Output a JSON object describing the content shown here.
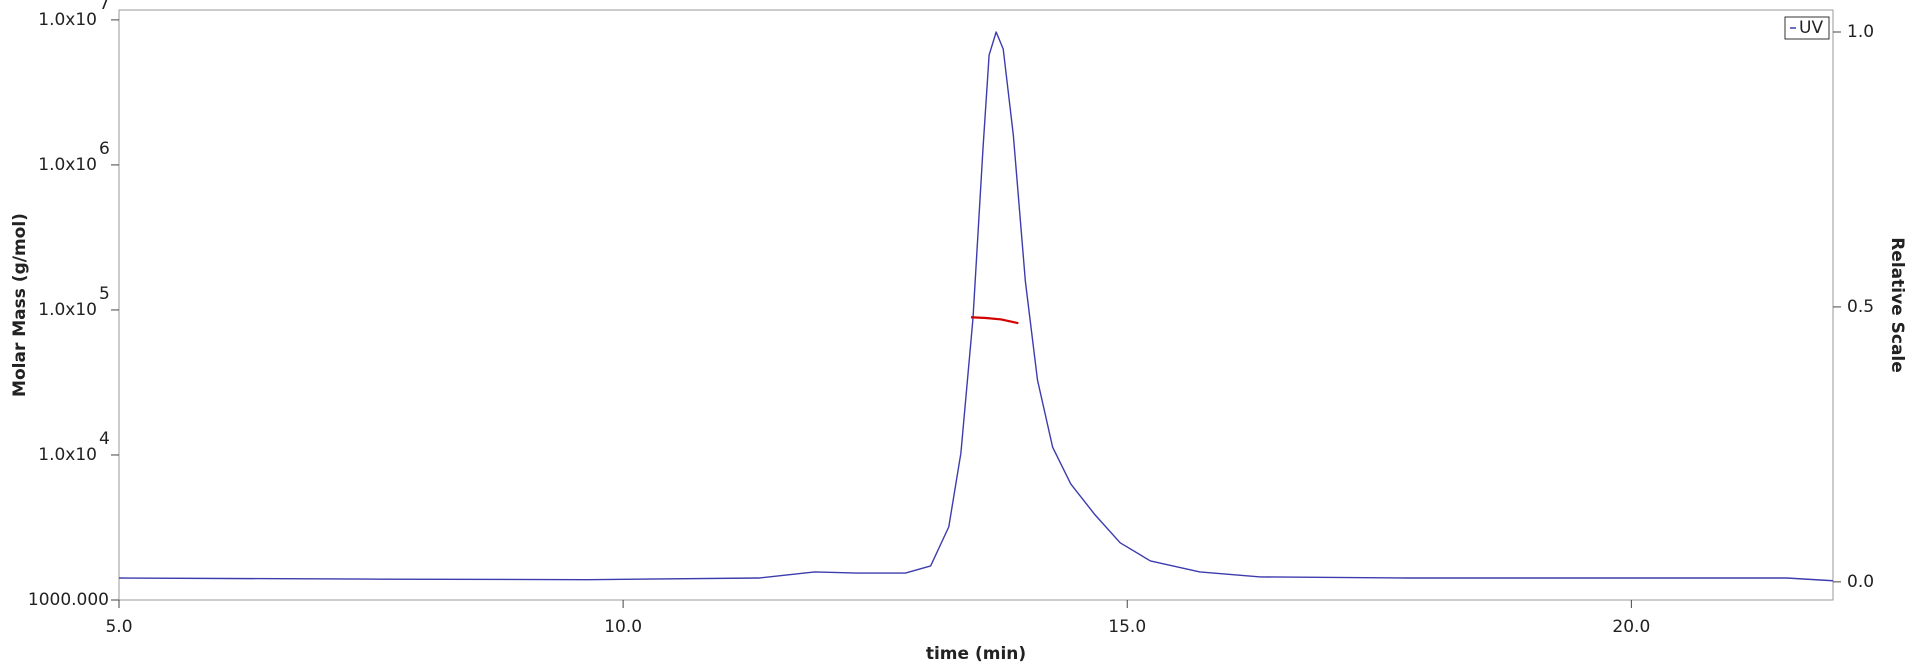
{
  "chart_data": {
    "type": "line",
    "xlabel": "time (min)",
    "ylabel": "Molar Mass (g/mol)",
    "y2label": "Relative Scale",
    "xlim": [
      5,
      22
    ],
    "xticks": [
      {
        "value": 5,
        "label": "5.0"
      },
      {
        "value": 10,
        "label": "10.0"
      },
      {
        "value": 15,
        "label": "15.0"
      },
      {
        "value": 20,
        "label": "20.0"
      }
    ],
    "ylim": [
      1000,
      11700000
    ],
    "yscale": "log",
    "yticks": [
      {
        "value": 1000,
        "label": "1000.000"
      },
      {
        "value": 10000,
        "label": "1.0x10",
        "exponent": "4"
      },
      {
        "value": 100000,
        "label": "1.0x10",
        "exponent": "5"
      },
      {
        "value": 1000000,
        "label": "1.0x10",
        "exponent": "6"
      },
      {
        "value": 10000000,
        "label": "1.0x10",
        "exponent": "7"
      }
    ],
    "y2lim": [
      -0.033,
      1.04
    ],
    "y2ticks": [
      {
        "value": 0,
        "label": "0.0"
      },
      {
        "value": 0.5,
        "label": "0.5"
      },
      {
        "value": 1,
        "label": "1.0"
      }
    ],
    "legend": "upper right",
    "series": [
      {
        "name": "UV",
        "color": "#3c3cae",
        "axis": "y2",
        "x": [
          5.0,
          7.46,
          9.65,
          11.35,
          11.9,
          12.32,
          12.8,
          13.05,
          13.23,
          13.35,
          13.47,
          13.57,
          13.63,
          13.7,
          13.77,
          13.87,
          13.99,
          14.11,
          14.26,
          14.44,
          14.68,
          14.93,
          15.23,
          15.72,
          16.32,
          17.78,
          21.54,
          22.0
        ],
        "values": [
          0.007,
          0.005,
          0.004,
          0.007,
          0.018,
          0.016,
          0.016,
          0.029,
          0.1,
          0.234,
          0.479,
          0.79,
          0.958,
          1.0,
          0.969,
          0.813,
          0.546,
          0.367,
          0.245,
          0.178,
          0.122,
          0.071,
          0.038,
          0.018,
          0.009,
          0.007,
          0.007,
          0.002
        ]
      },
      {
        "color": "#d40000",
        "x": [
          13.45,
          13.6,
          13.75,
          13.92
        ],
        "values": [
          89000,
          88000,
          86000,
          81000
        ]
      }
    ]
  }
}
